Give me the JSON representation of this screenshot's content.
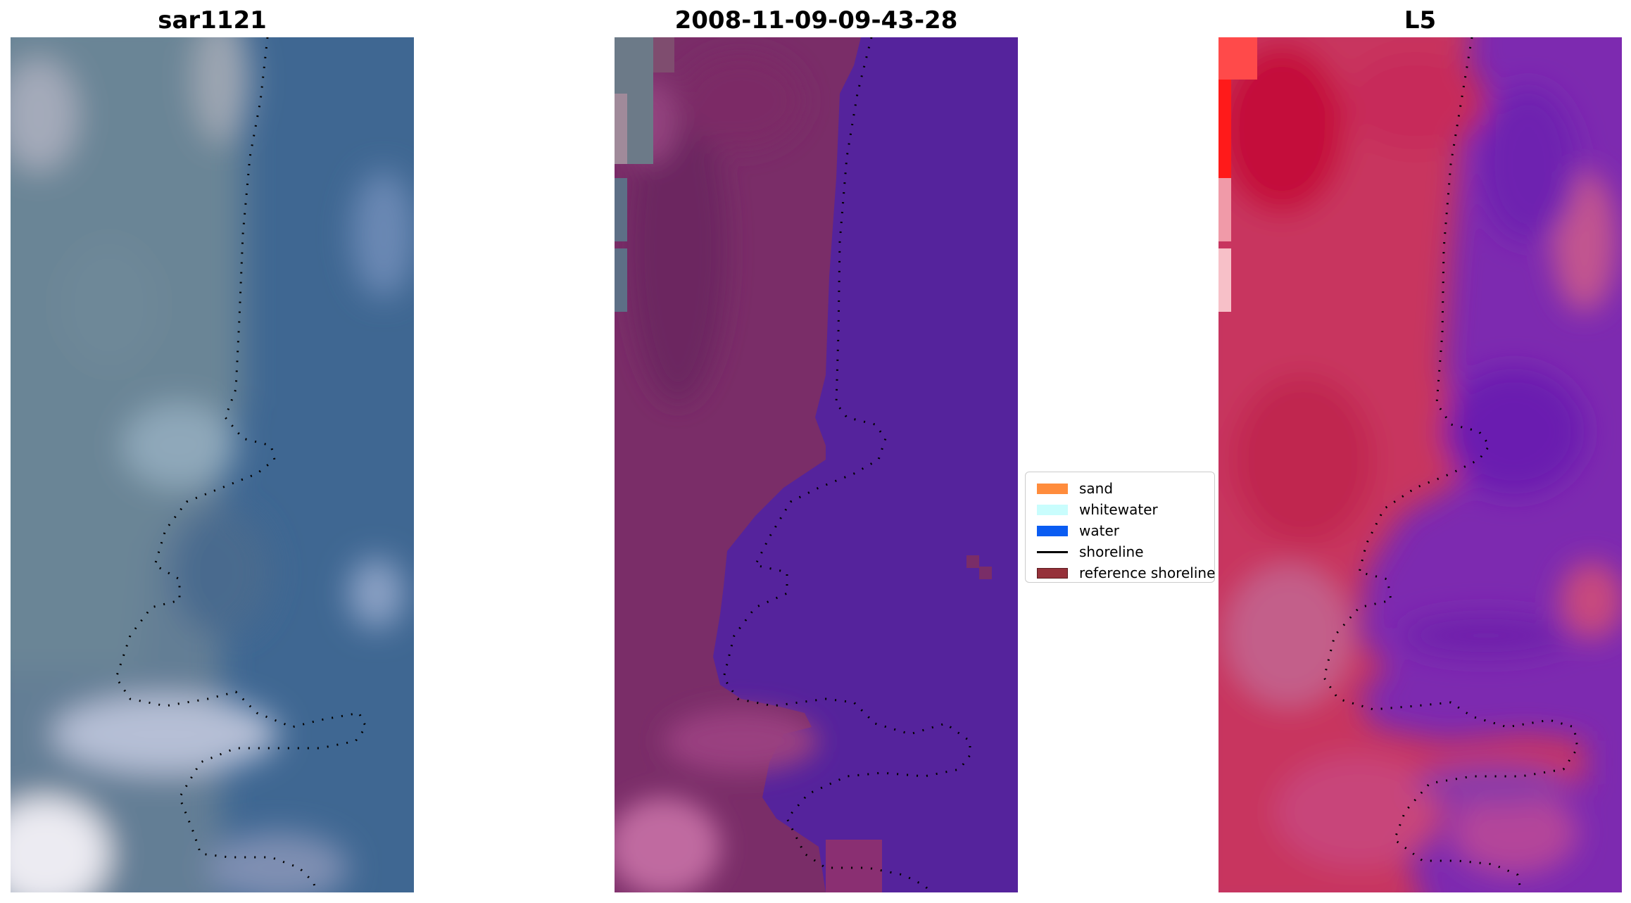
{
  "panels": [
    {
      "title": "sar1121"
    },
    {
      "title": "2008-11-09-09-43-28"
    },
    {
      "title": "L5"
    }
  ],
  "legend": {
    "items": [
      {
        "label": "sand",
        "kind": "patch",
        "color": "#ff8c3c",
        "edge": "#ff8c3c"
      },
      {
        "label": "whitewater",
        "kind": "patch",
        "color": "#c9fdfd",
        "edge": "#c9fdfd"
      },
      {
        "label": "water",
        "kind": "patch",
        "color": "#0a5cf2",
        "edge": "#0a5cf2"
      },
      {
        "label": "shoreline",
        "kind": "line",
        "color": "#000000"
      },
      {
        "label": "reference shoreline",
        "kind": "patch",
        "color": "#96313a",
        "edge": "#5a1a1f"
      }
    ]
  },
  "colors": {
    "panel1_base": "#4a6f98",
    "panel1_land": "#6f8496",
    "panel2_land": "#7a2d68",
    "panel2_water": "#55239c",
    "panel3_land": "#c8355e",
    "panel3_water": "#7a27a8",
    "shoreline_dots": "#000000"
  }
}
